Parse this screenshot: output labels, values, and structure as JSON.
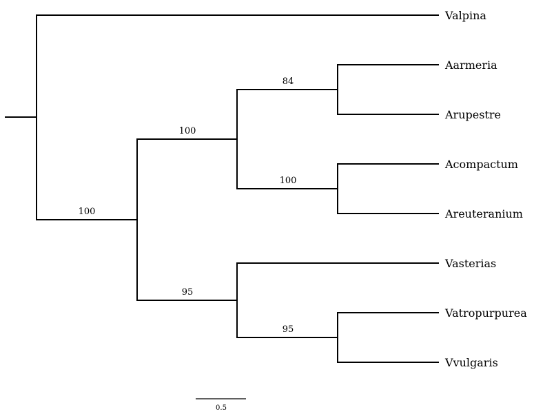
{
  "tree": {
    "tips": {
      "valpina": "Valpina",
      "aarmeria": "Aarmeria",
      "arupestre": "Arupestre",
      "acompactum": "Acompactum",
      "areuteranium": "Areuteranium",
      "vasterias": "Vasterias",
      "vatropurpurea": "Vatropurpurea",
      "vvulgaris": "Vvulgaris"
    },
    "support": {
      "ingroup": "100",
      "a_clade": "100",
      "aarmeria_arupestre": "84",
      "acompactum_areuteranium": "100",
      "v_clade": "95",
      "vatropurpurea_vvulgaris": "95"
    },
    "scale_bar": {
      "label": "0.5"
    }
  }
}
